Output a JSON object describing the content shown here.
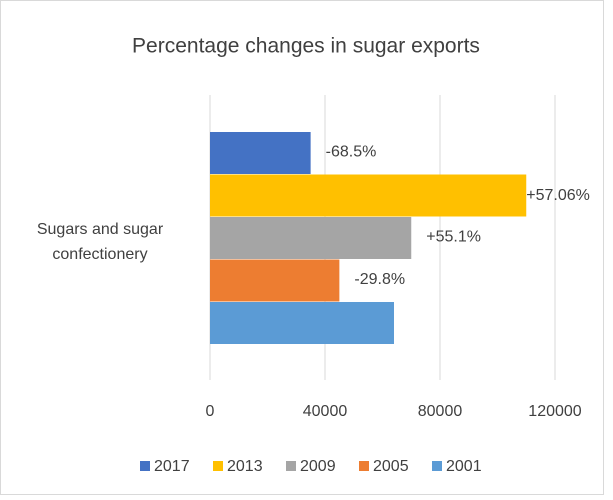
{
  "chart_data": {
    "type": "bar",
    "orientation": "horizontal",
    "title": "Percentage changes in sugar exports",
    "categories": [
      "Sugars and sugar confectionery"
    ],
    "series": [
      {
        "name": "2017",
        "color": "#4472c4",
        "values": [
          35000
        ],
        "annotation": "-68.5%"
      },
      {
        "name": "2013",
        "color": "#ffc000",
        "values": [
          110000
        ],
        "annotation": "+57.06%"
      },
      {
        "name": "2009",
        "color": "#a5a5a5",
        "values": [
          70000
        ],
        "annotation": "+55.1%"
      },
      {
        "name": "2005",
        "color": "#ed7d31",
        "values": [
          45000
        ],
        "annotation": "-29.8%"
      },
      {
        "name": "2001",
        "color": "#5b9bd5",
        "values": [
          64000
        ]
      }
    ],
    "xlim": [
      0,
      130000
    ],
    "xticks": [
      0,
      40000,
      80000,
      120000
    ],
    "grid": true,
    "legend": "bottom"
  }
}
